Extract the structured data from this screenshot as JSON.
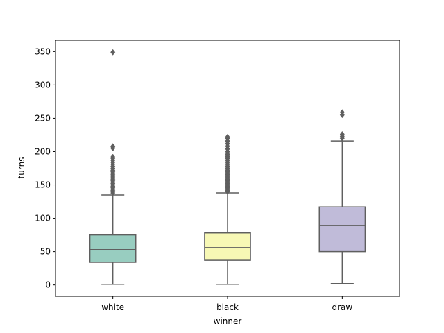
{
  "chart_data": {
    "type": "box",
    "xlabel": "winner",
    "ylabel": "turns",
    "ylim": [
      -17,
      367
    ],
    "yticks": [
      0,
      50,
      100,
      150,
      200,
      250,
      300,
      350
    ],
    "ytick_labels": [
      "0",
      "50",
      "100",
      "150",
      "200",
      "250",
      "300",
      "350"
    ],
    "categories": [
      "white",
      "black",
      "draw"
    ],
    "grid": false,
    "legend": "none",
    "colors": {
      "white": "#98cdc0",
      "black": "#f7f8b5",
      "draw": "#c0bbd9",
      "line": "#5f5f5f"
    },
    "boxes": [
      {
        "category": "white",
        "whisker_low": 1,
        "q1": 34,
        "median": 53,
        "q3": 75,
        "whisker_high": 135,
        "outliers": [
          138,
          140,
          142,
          144,
          146,
          148,
          150,
          152,
          154,
          156,
          158,
          160,
          162,
          164,
          166,
          168,
          170,
          172,
          175,
          178,
          181,
          184,
          187,
          190,
          192,
          205,
          207,
          208,
          349
        ]
      },
      {
        "category": "black",
        "whisker_low": 1,
        "q1": 37,
        "median": 56,
        "q3": 78,
        "whisker_high": 138,
        "outliers": [
          140,
          142,
          144,
          146,
          148,
          150,
          152,
          154,
          156,
          158,
          160,
          162,
          164,
          166,
          168,
          170,
          172,
          175,
          178,
          181,
          184,
          187,
          190,
          193,
          196,
          200,
          204,
          208,
          212,
          216,
          220,
          222
        ]
      },
      {
        "category": "draw",
        "whisker_low": 2,
        "q1": 50,
        "median": 89,
        "q3": 117,
        "whisker_high": 216,
        "outliers": [
          220,
          223,
          226,
          255,
          259
        ]
      }
    ]
  }
}
